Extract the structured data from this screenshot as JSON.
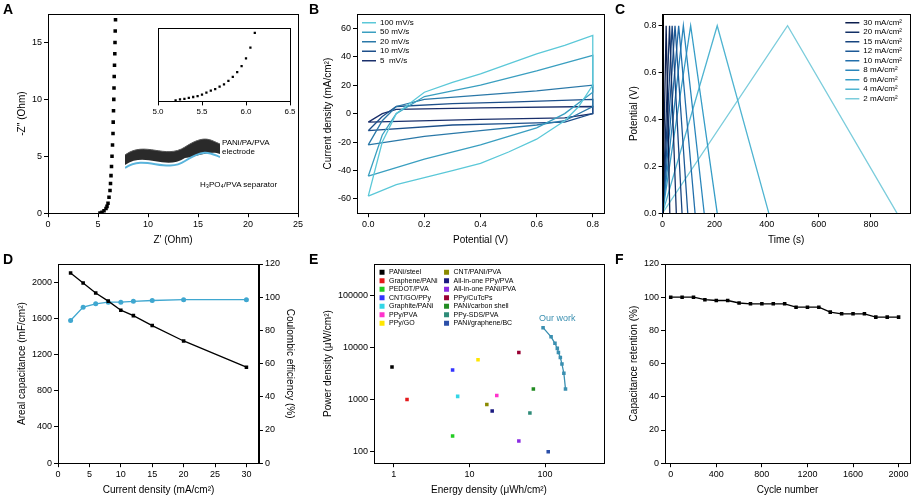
{
  "chart_data": [
    {
      "panel": "A",
      "type": "scatter",
      "x_label": "Z' (Ohm)",
      "y_label": "-Z'' (Ohm)",
      "x": [
        5.2,
        5.4,
        5.6,
        5.8,
        5.9,
        6.0,
        6.1,
        6.2,
        6.25,
        6.3,
        6.35,
        6.4,
        6.45,
        6.5,
        6.52,
        6.55,
        6.58,
        6.6,
        6.62,
        6.65,
        6.68,
        6.7,
        6.72,
        6.75
      ],
      "values": [
        0.02,
        0.09,
        0.22,
        0.42,
        0.6,
        0.88,
        1.4,
        2.0,
        2.6,
        3.3,
        4.1,
        5.0,
        6.0,
        7.0,
        8.0,
        9.0,
        10.0,
        11.0,
        12.0,
        13.0,
        14.0,
        15.0,
        16.0,
        17.0
      ],
      "color": "#000000",
      "marker": "square",
      "xlim": [
        0,
        25
      ],
      "xticks": [
        0,
        5,
        10,
        15,
        20,
        25
      ],
      "ylim": [
        0,
        17.5
      ],
      "yticks": [
        0,
        5,
        10,
        15
      ],
      "grid": false,
      "annotations": [
        {
          "text": [
            "PANi/PA/PVA",
            "electrode"
          ]
        },
        {
          "text": [
            "H₃PO₄/PVA separator"
          ]
        }
      ],
      "inset": {
        "type": "scatter",
        "x": [
          5.2,
          5.25,
          5.3,
          5.35,
          5.4,
          5.45,
          5.5,
          5.55,
          5.6,
          5.65,
          5.7,
          5.75,
          5.8,
          5.85,
          5.9,
          5.95,
          6.0,
          6.05,
          6.1
        ],
        "values": [
          0.02,
          0.04,
          0.05,
          0.07,
          0.09,
          0.11,
          0.14,
          0.18,
          0.22,
          0.25,
          0.3,
          0.35,
          0.42,
          0.5,
          0.6,
          0.72,
          0.88,
          1.1,
          1.4
        ],
        "color": "#000000",
        "marker": "square",
        "xlim": [
          5,
          6.5
        ],
        "xticks": [
          {
            "value": 5,
            "label": "5.0"
          },
          5.5,
          {
            "value": 6,
            "label": "6.0"
          },
          6.5
        ],
        "ylim": [
          0,
          1.5
        ],
        "grid": false,
        "tick_labels": "x"
      }
    },
    {
      "panel": "B",
      "type": "line",
      "x_label": "Potential (V)",
      "y_label": "Current density (mA/cm²)",
      "xlim": [
        -0.04,
        0.84
      ],
      "xticks": [
        {
          "value": 0,
          "label": "0.0"
        },
        0.2,
        0.4,
        0.6,
        0.8
      ],
      "ylim": [
        -70,
        70
      ],
      "yticks": [
        -60,
        -40,
        -20,
        0,
        20,
        40,
        60
      ],
      "grid": false,
      "legend": "upper left",
      "series": [
        {
          "name": "100 mV/s",
          "color": "#5bc8d8",
          "x": [
            0,
            0.05,
            0.1,
            0.2,
            0.3,
            0.4,
            0.5,
            0.6,
            0.7,
            0.8,
            0.8,
            0.75,
            0.7,
            0.6,
            0.5,
            0.4,
            0.3,
            0.2,
            0.1,
            0
          ],
          "values": [
            -58,
            -20,
            0,
            15,
            22,
            28,
            35,
            42,
            48,
            55,
            20,
            5,
            -5,
            -18,
            -27,
            -35,
            -40,
            -45,
            -50,
            -58
          ]
        },
        {
          "name": "50 mV/s",
          "color": "#3a9fc0",
          "x": [
            0,
            0.05,
            0.1,
            0.2,
            0.4,
            0.6,
            0.8,
            0.8,
            0.7,
            0.6,
            0.4,
            0.2,
            0.1,
            0
          ],
          "values": [
            -44,
            -15,
            0,
            12,
            20,
            30,
            41,
            15,
            0,
            -10,
            -22,
            -32,
            -38,
            -44
          ]
        },
        {
          "name": "20 mV/s",
          "color": "#2a78a8",
          "x": [
            0,
            0.05,
            0.1,
            0.2,
            0.4,
            0.6,
            0.8,
            0.8,
            0.7,
            0.6,
            0.4,
            0.2,
            0
          ],
          "values": [
            -22,
            -5,
            5,
            10,
            13,
            16,
            20,
            5,
            -5,
            -8,
            -12,
            -16,
            -22
          ]
        },
        {
          "name": "10 mV/s",
          "color": "#1d4f8a",
          "x": [
            0,
            0.05,
            0.1,
            0.3,
            0.5,
            0.8,
            0.8,
            0.7,
            0.5,
            0.3,
            0
          ],
          "values": [
            -12,
            -2,
            5,
            7,
            8,
            10,
            0,
            -6,
            -7,
            -8,
            -12
          ]
        },
        {
          "name": "5  mV/s",
          "color": "#1a2f6b",
          "x": [
            0,
            0.05,
            0.1,
            0.4,
            0.8,
            0.8,
            0.7,
            0.4,
            0
          ],
          "values": [
            -6,
            0,
            3,
            4,
            5,
            0,
            -3,
            -4,
            -6
          ]
        }
      ]
    },
    {
      "panel": "C",
      "type": "line",
      "x_label": "Time (s)",
      "y_label": "Potential (V)",
      "xlim": [
        0,
        950
      ],
      "xticks": [
        0,
        200,
        400,
        600,
        800
      ],
      "ylim": [
        0,
        0.85
      ],
      "yticks": [
        {
          "value": 0,
          "label": "0.0"
        },
        0.2,
        0.4,
        0.6,
        0.8
      ],
      "grid": false,
      "legend": "upper right",
      "series": [
        {
          "name": "30 mA/cm²",
          "color": "#0b1d4d",
          "x": [
            0,
            14,
            28
          ],
          "values": [
            0,
            0.8,
            0
          ]
        },
        {
          "name": "20 mA/cm²",
          "color": "#123066",
          "x": [
            0,
            27,
            53
          ],
          "values": [
            0,
            0.8,
            0
          ]
        },
        {
          "name": "15 mA/cm²",
          "color": "#17447f",
          "x": [
            0,
            37,
            75
          ],
          "values": [
            0,
            0.8,
            0
          ]
        },
        {
          "name": "12 mA/cm²",
          "color": "#1c5996",
          "x": [
            0,
            48,
            97
          ],
          "values": [
            0,
            0.8,
            0
          ]
        },
        {
          "name": "10 mA/cm²",
          "color": "#226fab",
          "x": [
            0,
            62,
            125
          ],
          "values": [
            0,
            0.8,
            0
          ]
        },
        {
          "name": "8 mA/cm²",
          "color": "#2a86bb",
          "x": [
            0,
            80,
            160
          ],
          "values": [
            0,
            0.8,
            0
          ]
        },
        {
          "name": "6 mA/cm²",
          "color": "#369dc7",
          "x": [
            0,
            108,
            210
          ],
          "values": [
            0,
            0.8,
            0
          ]
        },
        {
          "name": "4 mA/cm²",
          "color": "#4fb4d1",
          "x": [
            0,
            210,
            408
          ],
          "values": [
            0,
            0.8,
            0
          ]
        },
        {
          "name": "2 mA/cm²",
          "color": "#7ccddc",
          "x": [
            0,
            480,
            900
          ],
          "values": [
            0,
            0.8,
            0
          ]
        }
      ]
    },
    {
      "panel": "D",
      "type": "line",
      "x_label": "Current density (mA/cm²)",
      "y_label": "Areal capacitance (mF/cm²)",
      "y2_label": "Coulombic efficiency (%)",
      "x": [
        2,
        4,
        6,
        8,
        10,
        12,
        15,
        20,
        30
      ],
      "xlim": [
        0,
        32
      ],
      "xticks": [
        0,
        5,
        10,
        15,
        20,
        25,
        30
      ],
      "ylim": [
        0,
        2200
      ],
      "yticks": [
        0,
        400,
        800,
        1200,
        1600,
        2000
      ],
      "y2lim": [
        0,
        120
      ],
      "y2ticks": [
        0,
        20,
        40,
        60,
        80,
        100,
        120
      ],
      "grid": false,
      "series": [
        {
          "color": "#000000",
          "marker": "square",
          "values": [
            2100,
            1990,
            1880,
            1790,
            1690,
            1630,
            1520,
            1350,
            1060
          ]
        },
        {
          "color": "#3fa7d0",
          "marker": "circle",
          "axis": "y2",
          "values": [
            86,
            94,
            96,
            97,
            97,
            97.5,
            98,
            98.5,
            98.5
          ]
        }
      ]
    },
    {
      "panel": "E",
      "type": "scatter",
      "log": true,
      "x_label": "Energy density (μWh/cm²)",
      "y_label": "Power density (μW/cm²)",
      "xlim": [
        0.55,
        600
      ],
      "xticks": [
        1,
        10,
        100
      ],
      "ylim": [
        60,
        400000
      ],
      "yticks": [
        100,
        1000,
        10000,
        100000
      ],
      "grid": false,
      "legend": "upper left",
      "marker": "square",
      "series": [
        {
          "name": "PANi/steel",
          "color": "#000000",
          "x": [
            0.95
          ],
          "values": [
            4200
          ]
        },
        {
          "name": "Graphene/PANi",
          "color": "#e41a1c",
          "x": [
            1.5
          ],
          "values": [
            1000
          ]
        },
        {
          "name": "PEDOT/PVA",
          "color": "#22cc22",
          "x": [
            6
          ],
          "values": [
            200
          ]
        },
        {
          "name": "CNT/GO/PPy",
          "color": "#3333ff",
          "x": [
            6
          ],
          "values": [
            3700
          ]
        },
        {
          "name": "Graphite/PANi",
          "color": "#33d6e6",
          "x": [
            7
          ],
          "values": [
            1150
          ]
        },
        {
          "name": "PPy/PVA",
          "color": "#ff33cc",
          "x": [
            23
          ],
          "values": [
            1200
          ]
        },
        {
          "name": "PPy/GO",
          "color": "#ffe600",
          "x": [
            13
          ],
          "values": [
            5800
          ]
        },
        {
          "name": "CNT/PANI/PVA",
          "color": "#8a8a00",
          "x": [
            17
          ],
          "values": [
            800
          ]
        },
        {
          "name": "All-in-one PPy/PVA",
          "color": "#1a1a80",
          "x": [
            20
          ],
          "values": [
            600
          ]
        },
        {
          "name": "All-in-one PANi/PVA",
          "color": "#8a2be2",
          "x": [
            45
          ],
          "values": [
            160
          ]
        },
        {
          "name": "PPy/CuTcPs",
          "color": "#990033",
          "x": [
            45
          ],
          "values": [
            8000
          ]
        },
        {
          "name": "PANi/carbon shell",
          "color": "#228b22",
          "x": [
            70
          ],
          "values": [
            1600
          ]
        },
        {
          "name": "PPy-SDS/PVA",
          "color": "#2e8b78",
          "x": [
            63
          ],
          "values": [
            550
          ]
        },
        {
          "name": "PANi/graphene/BC",
          "color": "#2b4fa8",
          "x": [
            110
          ],
          "values": [
            100
          ]
        }
      ],
      "highlight": {
        "name": "Our work",
        "color": "#3a8fb0",
        "marker": "square",
        "line_style": "solid",
        "x": [
          186,
          177,
          167,
          159,
          150,
          145,
          135,
          120,
          94
        ],
        "values": [
          1600,
          3200,
          4800,
          6400,
          8000,
          9600,
          12000,
          16000,
          24000
        ]
      }
    },
    {
      "panel": "F",
      "type": "line",
      "x_label": "Cycle number",
      "y_label": "Capacitance retention (%)",
      "x": [
        0,
        100,
        200,
        300,
        400,
        500,
        600,
        700,
        800,
        900,
        1000,
        1100,
        1200,
        1300,
        1400,
        1500,
        1600,
        1700,
        1800,
        1900,
        2000
      ],
      "values": [
        100,
        100,
        100,
        98.5,
        98,
        98,
        96.5,
        96,
        96,
        96,
        96,
        94,
        94,
        94,
        91,
        90,
        90,
        90,
        88,
        88,
        88
      ],
      "color": "#000000",
      "marker": "square",
      "xlim": [
        -50,
        2100
      ],
      "xticks": [
        0,
        400,
        800,
        1200,
        1600,
        2000
      ],
      "ylim": [
        0,
        120
      ],
      "yticks": [
        0,
        20,
        40,
        60,
        80,
        100,
        120
      ],
      "grid": false
    }
  ]
}
